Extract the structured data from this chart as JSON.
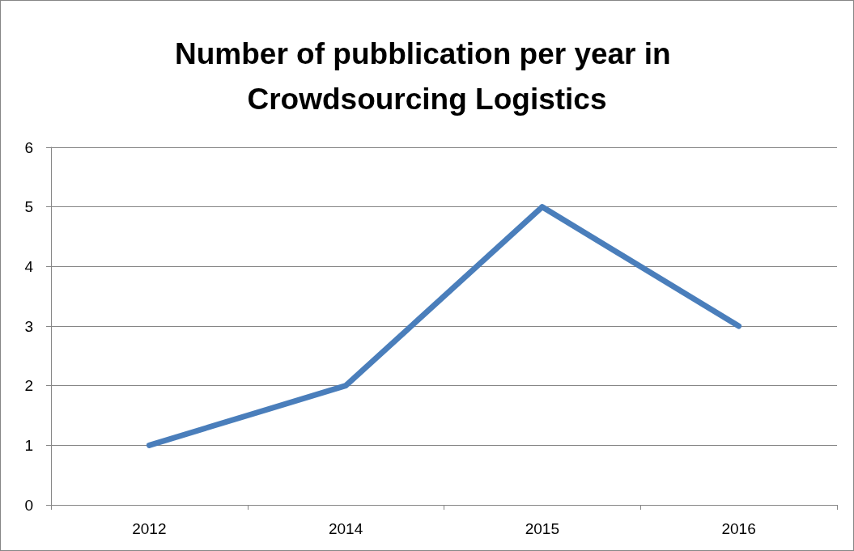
{
  "chart_data": {
    "type": "line",
    "title": "Number of pubblication per year in Crowdsourcing Logistics",
    "categories": [
      "2012",
      "2014",
      "2015",
      "2016"
    ],
    "series": [
      {
        "color": "#4a7ebb",
        "values": [
          1,
          2,
          5,
          3
        ]
      }
    ],
    "ylim": [
      0,
      6
    ],
    "yticks": [
      0,
      1,
      2,
      3,
      4,
      5,
      6
    ],
    "grid": "y",
    "marker": "none",
    "line_style": "solid"
  }
}
